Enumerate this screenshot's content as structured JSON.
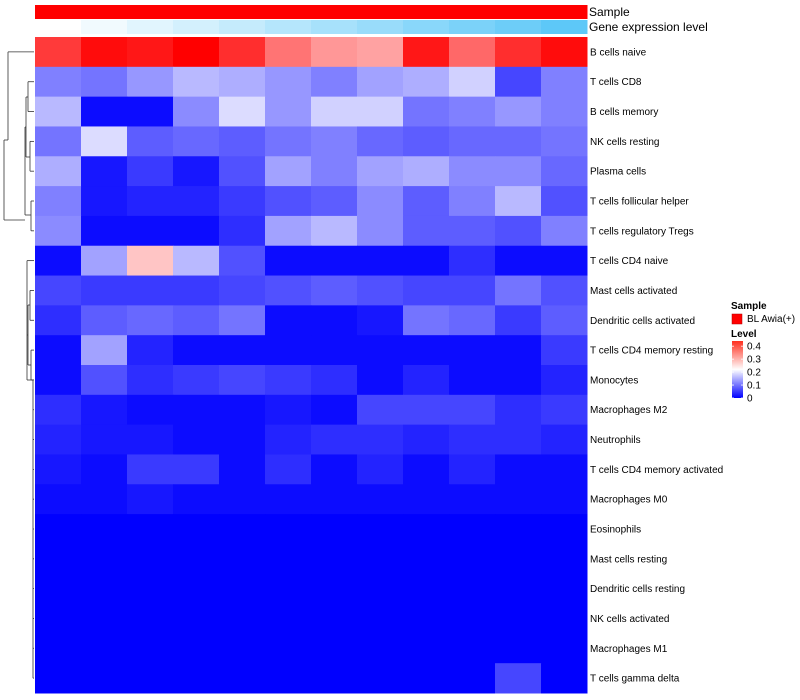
{
  "chart_data": {
    "type": "heatmap",
    "annotations": [
      {
        "label": "Sample"
      },
      {
        "label": "Gene expression level"
      }
    ],
    "rows": [
      "B cells naive",
      "T cells CD8",
      "B cells memory",
      "NK cells resting",
      "Plasma cells",
      "T cells follicular helper",
      "T cells regulatory  Tregs",
      "T cells CD4 naive",
      "Mast cells activated",
      "Dendritic cells activated",
      "T cells CD4 memory resting",
      "Monocytes",
      "Macrophages M2",
      "Neutrophils",
      "T cells CD4 memory activated",
      "Macrophages M0",
      "Eosinophils",
      "Mast cells resting",
      "Dendritic cells resting",
      "NK cells activated",
      "Macrophages M1",
      "T cells gamma delta"
    ],
    "values": [
      [
        0.39,
        0.43,
        0.42,
        0.44,
        0.4,
        0.34,
        0.31,
        0.3,
        0.42,
        0.35,
        0.4,
        0.43
      ],
      [
        0.11,
        0.1,
        0.13,
        0.16,
        0.15,
        0.13,
        0.11,
        0.14,
        0.15,
        0.18,
        0.06,
        0.11
      ],
      [
        0.16,
        0.01,
        0.01,
        0.12,
        0.19,
        0.13,
        0.18,
        0.18,
        0.1,
        0.11,
        0.13,
        0.11
      ],
      [
        0.1,
        0.19,
        0.08,
        0.09,
        0.08,
        0.1,
        0.11,
        0.09,
        0.08,
        0.09,
        0.09,
        0.1
      ],
      [
        0.15,
        0.02,
        0.05,
        0.02,
        0.07,
        0.14,
        0.11,
        0.14,
        0.15,
        0.12,
        0.12,
        0.09
      ],
      [
        0.11,
        0.02,
        0.03,
        0.03,
        0.05,
        0.07,
        0.08,
        0.12,
        0.08,
        0.11,
        0.16,
        0.07
      ],
      [
        0.12,
        0.01,
        0.01,
        0.01,
        0.04,
        0.14,
        0.16,
        0.12,
        0.08,
        0.08,
        0.07,
        0.11
      ],
      [
        0.01,
        0.14,
        0.27,
        0.16,
        0.07,
        0.01,
        0.01,
        0.01,
        0.01,
        0.04,
        0.01,
        0.01
      ],
      [
        0.06,
        0.05,
        0.05,
        0.05,
        0.06,
        0.07,
        0.08,
        0.07,
        0.06,
        0.06,
        0.1,
        0.07
      ],
      [
        0.04,
        0.08,
        0.09,
        0.08,
        0.1,
        0.01,
        0.01,
        0.02,
        0.1,
        0.09,
        0.05,
        0.08
      ],
      [
        0.01,
        0.14,
        0.03,
        0.01,
        0.01,
        0.01,
        0.01,
        0.01,
        0.01,
        0.01,
        0.01,
        0.05
      ],
      [
        0.01,
        0.07,
        0.04,
        0.05,
        0.06,
        0.05,
        0.04,
        0.01,
        0.03,
        0.01,
        0.01,
        0.03
      ],
      [
        0.04,
        0.02,
        0.01,
        0.01,
        0.01,
        0.02,
        0.01,
        0.06,
        0.06,
        0.06,
        0.04,
        0.05
      ],
      [
        0.03,
        0.02,
        0.02,
        0.01,
        0.01,
        0.03,
        0.04,
        0.04,
        0.03,
        0.04,
        0.04,
        0.03
      ],
      [
        0.02,
        0.01,
        0.05,
        0.05,
        0.01,
        0.04,
        0.01,
        0.03,
        0.01,
        0.03,
        0.01,
        0.01
      ],
      [
        0.01,
        0.01,
        0.02,
        0.01,
        0.01,
        0.01,
        0.01,
        0.01,
        0.01,
        0.01,
        0.01,
        0.01
      ],
      [
        0.0,
        0.0,
        0.0,
        0.0,
        0.0,
        0.0,
        0.0,
        0.0,
        0.0,
        0.0,
        0.0,
        0.0
      ],
      [
        0.0,
        0.0,
        0.0,
        0.0,
        0.0,
        0.0,
        0.0,
        0.0,
        0.0,
        0.0,
        0.0,
        0.0
      ],
      [
        0.0,
        0.0,
        0.0,
        0.0,
        0.0,
        0.0,
        0.0,
        0.0,
        0.0,
        0.0,
        0.0,
        0.0
      ],
      [
        0.0,
        0.0,
        0.0,
        0.0,
        0.0,
        0.0,
        0.0,
        0.0,
        0.0,
        0.0,
        0.0,
        0.0
      ],
      [
        0.0,
        0.0,
        0.0,
        0.0,
        0.0,
        0.0,
        0.0,
        0.0,
        0.0,
        0.0,
        0.0,
        0.0
      ],
      [
        0.0,
        0.0,
        0.0,
        0.0,
        0.0,
        0.0,
        0.0,
        0.0,
        0.0,
        0.0,
        0.06,
        0.0
      ]
    ],
    "annotation_values": {
      "sample": [
        "BL Awia(+)",
        "BL Awia(+)",
        "BL Awia(+)",
        "BL Awia(+)",
        "BL Awia(+)",
        "BL Awia(+)",
        "BL Awia(+)",
        "BL Awia(+)",
        "BL Awia(+)",
        "BL Awia(+)",
        "BL Awia(+)",
        "BL Awia(+)"
      ],
      "gene_expression_level": [
        0.0,
        0.08,
        0.17,
        0.25,
        0.33,
        0.42,
        0.5,
        0.58,
        0.67,
        0.75,
        0.83,
        0.92
      ]
    },
    "colors": {
      "low": "#0000ff",
      "mid": "#ffffff",
      "high": "#ff0000",
      "sample": "#ff0000",
      "expression_low": "#ffffff",
      "expression_high": "#4fc3f7"
    },
    "color_range": [
      0,
      0.44
    ],
    "legend": {
      "placement": "right",
      "sample_title": "Sample",
      "sample_entries": [
        "BL Awia(+)"
      ],
      "level_title": "Level",
      "level_ticks": [
        "0.4",
        "0.3",
        "0.2",
        "0.1",
        "0"
      ],
      "level_tick_values": [
        0.4,
        0.3,
        0.2,
        0.1,
        0.0
      ]
    },
    "row_dendrogram": true
  }
}
